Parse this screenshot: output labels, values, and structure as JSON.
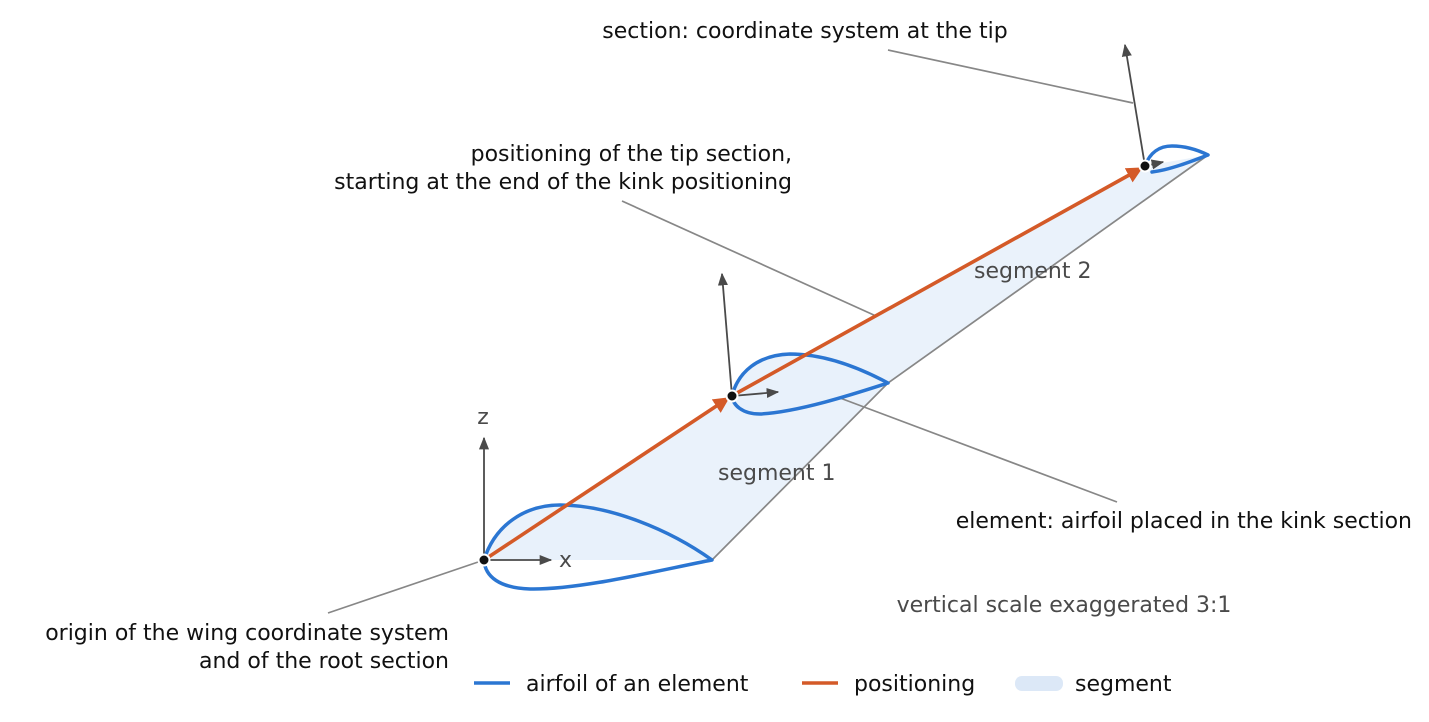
{
  "annotations": {
    "tip_coordinate_system": "section: coordinate system at the tip",
    "tip_positioning_line1": "positioning of the tip section,",
    "tip_positioning_line2": "starting at the end of the kink positioning",
    "kink_element": "element: airfoil placed in the kink section",
    "origin_line1": "origin of the wing coordinate system",
    "origin_line2": "and of the root section"
  },
  "segments": {
    "segment_1": "segment 1",
    "segment_2": "segment 2"
  },
  "axes": {
    "x_label": "x",
    "z_label": "z"
  },
  "note": "vertical scale exaggerated 3:1",
  "legend": {
    "items": [
      {
        "label": "airfoil of an element",
        "color": "#2b76d2"
      },
      {
        "label": "positioning",
        "color": "#d45a28"
      },
      {
        "label": "segment",
        "color": "#dce8f7"
      }
    ]
  },
  "colors": {
    "airfoil": "#2b76d2",
    "positioning": "#d45a28",
    "segment": "#e8f1fb",
    "leader": "#878787"
  }
}
